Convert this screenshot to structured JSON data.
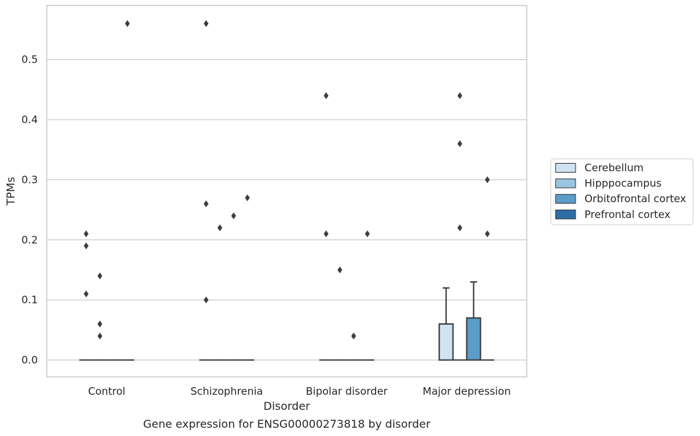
{
  "chart_data": {
    "type": "box",
    "title": "Gene expression for ENSG00000273818 by disorder",
    "xlabel": "Disorder",
    "ylabel": "TPMs",
    "ylim": [
      -0.028,
      0.59
    ],
    "y_ticks": [
      "0.0",
      "0.1",
      "0.2",
      "0.3",
      "0.4",
      "0.5"
    ],
    "y_tick_values": [
      0,
      0.1,
      0.2,
      0.3,
      0.4,
      0.5
    ],
    "grid": "horizontal",
    "legend_position": "right",
    "categories": [
      "Control",
      "Schizophrenia",
      "Bipolar disorder",
      "Major depression"
    ],
    "series": [
      {
        "name": "Cerebellum",
        "color": "#d1e2f2",
        "boxes": [
          {
            "q1": 0,
            "median": 0,
            "q3": 0,
            "whisker_low": 0,
            "whisker_high": 0,
            "outliers": [
              0.21,
              0.19,
              0.11
            ]
          },
          {
            "q1": 0,
            "median": 0,
            "q3": 0,
            "whisker_low": 0,
            "whisker_high": 0,
            "outliers": [
              0.56,
              0.26,
              0.1
            ]
          },
          {
            "q1": 0,
            "median": 0,
            "q3": 0,
            "whisker_low": 0,
            "whisker_high": 0,
            "outliers": [
              0.44,
              0.21
            ]
          },
          {
            "q1": 0,
            "median": 0,
            "q3": 0.06,
            "whisker_low": 0,
            "whisker_high": 0.12,
            "outliers": []
          }
        ]
      },
      {
        "name": "Hipppocampus",
        "color": "#9ac5e0",
        "boxes": [
          {
            "q1": 0,
            "median": 0,
            "q3": 0,
            "whisker_low": 0,
            "whisker_high": 0,
            "outliers": [
              0.14,
              0.06,
              0.04
            ]
          },
          {
            "q1": 0,
            "median": 0,
            "q3": 0,
            "whisker_low": 0,
            "whisker_high": 0,
            "outliers": [
              0.22
            ]
          },
          {
            "q1": 0,
            "median": 0,
            "q3": 0,
            "whisker_low": 0,
            "whisker_high": 0,
            "outliers": [
              0.15
            ]
          },
          {
            "q1": 0,
            "median": 0,
            "q3": 0,
            "whisker_low": 0,
            "whisker_high": 0,
            "outliers": [
              0.44,
              0.36,
              0.22
            ]
          }
        ]
      },
      {
        "name": "Orbitofrontal cortex",
        "color": "#5b9cc9",
        "boxes": [
          {
            "q1": 0,
            "median": 0,
            "q3": 0,
            "whisker_low": 0,
            "whisker_high": 0,
            "outliers": []
          },
          {
            "q1": 0,
            "median": 0,
            "q3": 0,
            "whisker_low": 0,
            "whisker_high": 0,
            "outliers": [
              0.24
            ]
          },
          {
            "q1": 0,
            "median": 0,
            "q3": 0,
            "whisker_low": 0,
            "whisker_high": 0,
            "outliers": [
              0.04
            ]
          },
          {
            "q1": 0,
            "median": 0,
            "q3": 0.07,
            "whisker_low": 0,
            "whisker_high": 0.13,
            "outliers": []
          }
        ]
      },
      {
        "name": "Prefrontal cortex",
        "color": "#2e6ea7",
        "boxes": [
          {
            "q1": 0,
            "median": 0,
            "q3": 0,
            "whisker_low": 0,
            "whisker_high": 0,
            "outliers": [
              0.56
            ]
          },
          {
            "q1": 0,
            "median": 0,
            "q3": 0,
            "whisker_low": 0,
            "whisker_high": 0,
            "outliers": [
              0.27
            ]
          },
          {
            "q1": 0,
            "median": 0,
            "q3": 0,
            "whisker_low": 0,
            "whisker_high": 0,
            "outliers": [
              0.21
            ]
          },
          {
            "q1": 0,
            "median": 0,
            "q3": 0,
            "whisker_low": 0,
            "whisker_high": 0,
            "outliers": [
              0.3,
              0.21
            ]
          }
        ]
      }
    ]
  }
}
